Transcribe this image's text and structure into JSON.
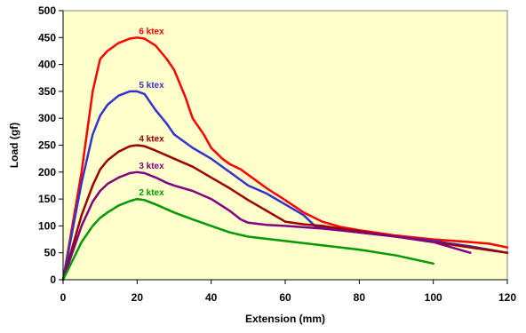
{
  "chart_data": {
    "type": "line",
    "title": "",
    "xlabel": "Extension (mm)",
    "ylabel": "Load (gf)",
    "xlim": [
      0,
      120
    ],
    "ylim": [
      0,
      500
    ],
    "x_ticks": [
      "0",
      "20",
      "40",
      "60",
      "80",
      "100",
      "120"
    ],
    "y_ticks": [
      "0",
      "50",
      "100",
      "150",
      "200",
      "250",
      "300",
      "350",
      "400",
      "450",
      "500"
    ],
    "x_tick_values": [
      0,
      20,
      40,
      60,
      80,
      100,
      120
    ],
    "y_tick_values": [
      0,
      50,
      100,
      150,
      200,
      250,
      300,
      350,
      400,
      450,
      500
    ],
    "plot_background": "#FFFFCC",
    "grid": false,
    "legend": "inline labels at curve peaks",
    "series": [
      {
        "name": "6 ktex",
        "color": "#FF0000",
        "label_at": [
          20,
          450
        ],
        "points": [
          [
            0,
            0
          ],
          [
            5,
            200
          ],
          [
            8,
            350
          ],
          [
            10,
            410
          ],
          [
            12,
            425
          ],
          [
            15,
            440
          ],
          [
            18,
            448
          ],
          [
            20,
            450
          ],
          [
            22,
            448
          ],
          [
            25,
            435
          ],
          [
            28,
            410
          ],
          [
            30,
            390
          ],
          [
            33,
            340
          ],
          [
            35,
            300
          ],
          [
            38,
            270
          ],
          [
            40,
            245
          ],
          [
            43,
            225
          ],
          [
            45,
            215
          ],
          [
            48,
            205
          ],
          [
            50,
            195
          ],
          [
            55,
            170
          ],
          [
            60,
            148
          ],
          [
            65,
            125
          ],
          [
            70,
            108
          ],
          [
            75,
            98
          ],
          [
            80,
            92
          ],
          [
            90,
            82
          ],
          [
            100,
            75
          ],
          [
            110,
            70
          ],
          [
            115,
            67
          ],
          [
            120,
            60
          ]
        ]
      },
      {
        "name": "5 ktex",
        "color": "#3333CC",
        "label_at": [
          20,
          350
        ],
        "points": [
          [
            0,
            0
          ],
          [
            5,
            180
          ],
          [
            8,
            270
          ],
          [
            10,
            305
          ],
          [
            12,
            325
          ],
          [
            15,
            342
          ],
          [
            18,
            350
          ],
          [
            20,
            350
          ],
          [
            22,
            345
          ],
          [
            25,
            315
          ],
          [
            28,
            290
          ],
          [
            30,
            270
          ],
          [
            35,
            245
          ],
          [
            40,
            225
          ],
          [
            45,
            200
          ],
          [
            50,
            175
          ],
          [
            55,
            160
          ],
          [
            60,
            140
          ],
          [
            65,
            120
          ],
          [
            68,
            100
          ],
          [
            70,
            97
          ],
          [
            80,
            88
          ],
          [
            90,
            80
          ],
          [
            100,
            72
          ],
          [
            110,
            62
          ],
          [
            120,
            50
          ]
        ]
      },
      {
        "name": "4 ktex",
        "color": "#990000",
        "label_at": [
          20,
          250
        ],
        "points": [
          [
            0,
            0
          ],
          [
            5,
            120
          ],
          [
            8,
            175
          ],
          [
            10,
            205
          ],
          [
            12,
            222
          ],
          [
            15,
            238
          ],
          [
            18,
            248
          ],
          [
            20,
            250
          ],
          [
            22,
            248
          ],
          [
            25,
            240
          ],
          [
            30,
            225
          ],
          [
            35,
            210
          ],
          [
            40,
            190
          ],
          [
            45,
            170
          ],
          [
            50,
            148
          ],
          [
            55,
            128
          ],
          [
            60,
            108
          ],
          [
            65,
            103
          ],
          [
            70,
            100
          ],
          [
            80,
            90
          ],
          [
            90,
            80
          ],
          [
            100,
            70
          ],
          [
            110,
            60
          ],
          [
            120,
            50
          ]
        ]
      },
      {
        "name": "3 ktex",
        "color": "#800080",
        "label_at": [
          20,
          200
        ],
        "points": [
          [
            0,
            0
          ],
          [
            5,
            100
          ],
          [
            8,
            145
          ],
          [
            10,
            165
          ],
          [
            12,
            178
          ],
          [
            15,
            190
          ],
          [
            18,
            198
          ],
          [
            20,
            200
          ],
          [
            22,
            198
          ],
          [
            25,
            190
          ],
          [
            28,
            180
          ],
          [
            30,
            175
          ],
          [
            35,
            165
          ],
          [
            40,
            150
          ],
          [
            45,
            128
          ],
          [
            48,
            112
          ],
          [
            50,
            106
          ],
          [
            55,
            102
          ],
          [
            60,
            100
          ],
          [
            70,
            95
          ],
          [
            80,
            88
          ],
          [
            90,
            80
          ],
          [
            100,
            70
          ],
          [
            110,
            50
          ]
        ]
      },
      {
        "name": "2 ktex",
        "color": "#009900",
        "label_at": [
          20,
          150
        ],
        "points": [
          [
            0,
            0
          ],
          [
            5,
            70
          ],
          [
            8,
            100
          ],
          [
            10,
            115
          ],
          [
            12,
            125
          ],
          [
            15,
            138
          ],
          [
            18,
            146
          ],
          [
            20,
            150
          ],
          [
            22,
            148
          ],
          [
            25,
            140
          ],
          [
            30,
            125
          ],
          [
            35,
            112
          ],
          [
            40,
            100
          ],
          [
            45,
            88
          ],
          [
            50,
            80
          ],
          [
            60,
            72
          ],
          [
            70,
            64
          ],
          [
            80,
            56
          ],
          [
            90,
            45
          ],
          [
            100,
            30
          ]
        ]
      }
    ]
  }
}
